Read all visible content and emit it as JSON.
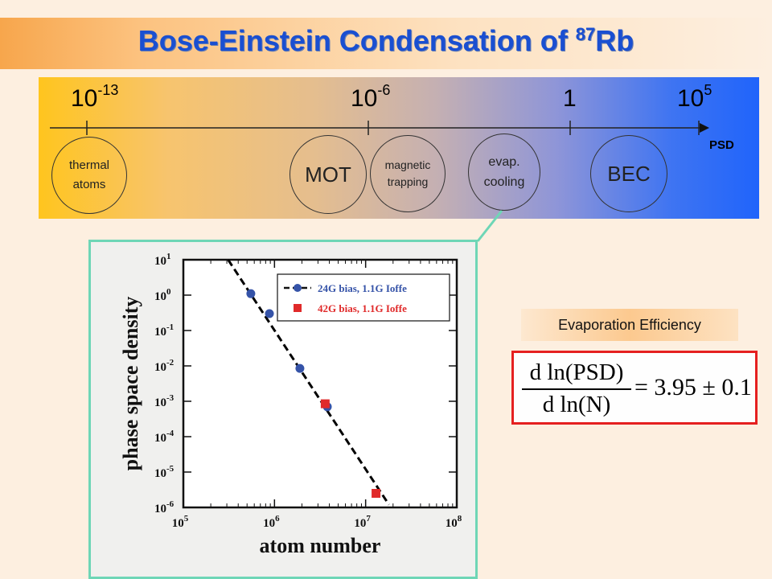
{
  "title": {
    "main": "Bose-Einstein Condensation of ",
    "sup": "87",
    "suffix": "Rb"
  },
  "timeline": {
    "ticks": [
      {
        "base": "10",
        "exp": "-13"
      },
      {
        "base": "10",
        "exp": "-6"
      },
      {
        "base": "1",
        "exp": ""
      },
      {
        "base": "10",
        "exp": "5"
      }
    ],
    "axis_label": "PSD",
    "stages": [
      {
        "line1": "thermal",
        "line2": "atoms",
        "color": "#f26c23"
      },
      {
        "line1": "MOT",
        "line2": "",
        "color": "#ffc20e"
      },
      {
        "line1": "magnetic",
        "line2": "trapping",
        "color": "#c9ef7c"
      },
      {
        "line1": "evap.",
        "line2": "cooling",
        "color": "#3fd9a6"
      },
      {
        "line1": "BEC",
        "line2": "",
        "color": "#9fcbf7"
      }
    ]
  },
  "chart_data": {
    "type": "scatter",
    "xlabel": "atom number",
    "ylabel": "phase space density",
    "xscale": "log",
    "yscale": "log",
    "xlim": [
      100000,
      100000000
    ],
    "ylim": [
      1e-06,
      10
    ],
    "x_ticks": [
      {
        "base": "10",
        "exp": "5"
      },
      {
        "base": "10",
        "exp": "6"
      },
      {
        "base": "10",
        "exp": "7"
      },
      {
        "base": "10",
        "exp": "8"
      }
    ],
    "y_ticks": [
      {
        "base": "10",
        "exp": "1"
      },
      {
        "base": "10",
        "exp": "0"
      },
      {
        "base": "10",
        "exp": "-1"
      },
      {
        "base": "10",
        "exp": "-2"
      },
      {
        "base": "10",
        "exp": "-3"
      },
      {
        "base": "10",
        "exp": "-4"
      },
      {
        "base": "10",
        "exp": "-5"
      },
      {
        "base": "10",
        "exp": "-6"
      }
    ],
    "series": [
      {
        "name": "24G bias, 1.1G Ioffe",
        "color": "#3553a8",
        "marker": "circle",
        "points": [
          [
            550000,
            1.1
          ],
          [
            880000,
            0.3
          ],
          [
            1900000,
            0.0085
          ],
          [
            3800000,
            0.0007
          ]
        ]
      },
      {
        "name": "42G bias, 1.1G Ioffe",
        "color": "#e02a2a",
        "marker": "square",
        "points": [
          [
            3600000,
            0.00085
          ],
          [
            13000000,
            2.5e-06
          ]
        ]
      }
    ],
    "fit": {
      "style": "dashed",
      "color": "#000000",
      "points": [
        [
          310000,
          10
        ],
        [
          18000000,
          1.2e-06
        ]
      ]
    },
    "legend": "top-right",
    "grid": false
  },
  "efficiency": {
    "label": "Evaporation Efficiency",
    "num": "d ln(PSD)",
    "den": "d ln(N)",
    "rhs": "= 3.95 ± 0.1"
  }
}
